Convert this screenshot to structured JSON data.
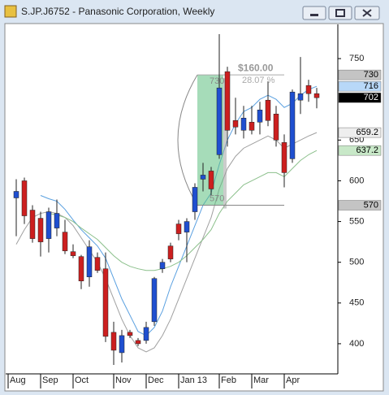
{
  "chart_data": {
    "type": "candlestick",
    "title": "S.JP.J6752 - Panasonic Corporation, Weekly",
    "categories": [
      "Aug",
      null,
      null,
      null,
      "Sep",
      null,
      null,
      null,
      "Oct",
      null,
      null,
      null,
      null,
      "Nov",
      null,
      null,
      null,
      "Dec",
      null,
      null,
      null,
      "Jan 13",
      null,
      null,
      null,
      null,
      "Feb",
      null,
      null,
      null,
      "Mar",
      null,
      null,
      null,
      "Apr",
      null,
      null,
      null
    ],
    "open": [
      579,
      600,
      564,
      554,
      529,
      542,
      537,
      513,
      507,
      482,
      506,
      492,
      414,
      389,
      414,
      404,
      404,
      427,
      492,
      520,
      547,
      537,
      562,
      602,
      612,
      632,
      734,
      674,
      662,
      672,
      672,
      699,
      682,
      647,
      627,
      699,
      717,
      707
    ],
    "high": [
      602,
      604,
      570,
      562,
      567,
      577,
      552,
      522,
      509,
      527,
      512,
      512,
      427,
      417,
      417,
      407,
      427,
      482,
      504,
      524,
      552,
      554,
      597,
      622,
      617,
      780,
      740,
      702,
      692,
      692,
      697,
      722,
      692,
      657,
      712,
      752,
      724,
      714
    ],
    "low": [
      532,
      547,
      524,
      507,
      512,
      532,
      510,
      505,
      467,
      470,
      487,
      402,
      374,
      377,
      407,
      397,
      400,
      422,
      487,
      500,
      527,
      500,
      552,
      587,
      582,
      627,
      642,
      657,
      652,
      657,
      657,
      667,
      642,
      592,
      622,
      682,
      697,
      689
    ],
    "close": [
      587,
      557,
      529,
      525,
      562,
      560,
      514,
      508,
      477,
      519,
      490,
      409,
      392,
      410,
      410,
      400,
      420,
      480,
      500,
      504,
      535,
      550,
      592,
      607,
      590,
      714,
      662,
      666,
      677,
      662,
      687,
      674,
      650,
      610,
      709,
      707,
      707,
      702
    ],
    "up_color": "#1f4fd0",
    "down_color": "#cc1f1f",
    "close_tag_color": "#000000",
    "series": [
      {
        "name": "MA short",
        "color": "#5aa0e0",
        "tag_color": "#b8d8f8",
        "values": [
          null,
          null,
          null,
          582,
          578,
          575,
          565,
          552,
          540,
          530,
          520,
          505,
          480,
          455,
          435,
          415,
          410,
          420,
          440,
          470,
          495,
          520,
          545,
          570,
          585,
          620,
          650,
          670,
          685,
          690,
          700,
          705,
          700,
          690,
          695,
          705,
          712,
          716
        ]
      },
      {
        "name": "MA mid",
        "color": "#a0a0a0",
        "tag_color": "#eeeeee",
        "values": [
          522,
          540,
          555,
          560,
          562,
          560,
          555,
          545,
          530,
          515,
          500,
          480,
          455,
          430,
          410,
          395,
          390,
          395,
          410,
          430,
          455,
          480,
          505,
          530,
          555,
          590,
          615,
          630,
          640,
          645,
          650,
          655,
          650,
          640,
          645,
          650,
          655,
          659.2
        ]
      },
      {
        "name": "MA long",
        "color": "#8cc08c",
        "tag_color": "#c8e8c8",
        "values": [
          null,
          null,
          null,
          null,
          560,
          558,
          555,
          550,
          542,
          535,
          528,
          518,
          508,
          500,
          495,
          492,
          490,
          490,
          492,
          495,
          500,
          508,
          518,
          528,
          540,
          560,
          575,
          585,
          595,
          600,
          605,
          610,
          610,
          605,
          615,
          625,
          632,
          637.2
        ]
      }
    ],
    "measure": {
      "from": 570,
      "to": 730,
      "change_label": "$160.00",
      "percent_label": "28.07 %",
      "tag_color": "#c4c4c4"
    },
    "ylim": [
      363,
      792
    ],
    "yticks": [
      400,
      450,
      500,
      550,
      600,
      650,
      750
    ]
  }
}
